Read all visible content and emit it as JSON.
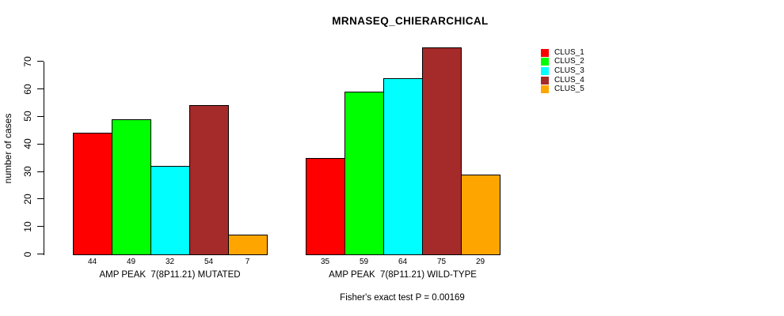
{
  "chart_data": {
    "type": "bar",
    "title": "MRNASEQ_CHIERARCHICAL",
    "ylabel": "number of cases",
    "ylim": [
      0,
      70
    ],
    "yticks": [
      0,
      10,
      20,
      30,
      40,
      50,
      60,
      70
    ],
    "grid": false,
    "legend_position": "top-right",
    "bar_value_labels": true,
    "categories": [
      "AMP PEAK  7(8P11.21) MUTATED",
      "AMP PEAK  7(8P11.21) WILD-TYPE"
    ],
    "series": [
      {
        "name": "CLUS_1",
        "color": "#FF0000",
        "values": [
          44,
          35
        ]
      },
      {
        "name": "CLUS_2",
        "color": "#00FF00",
        "values": [
          49,
          59
        ]
      },
      {
        "name": "CLUS_3",
        "color": "#00FFFF",
        "values": [
          32,
          64
        ]
      },
      {
        "name": "CLUS_4",
        "color": "#A52A2A",
        "values": [
          54,
          75
        ]
      },
      {
        "name": "CLUS_5",
        "color": "#FFA500",
        "values": [
          7,
          29
        ]
      }
    ],
    "footnote": "Fisher's exact test P = 0.00169",
    "colors": {
      "axis": "#000000",
      "text": "#000000",
      "background": "#ffffff"
    }
  }
}
